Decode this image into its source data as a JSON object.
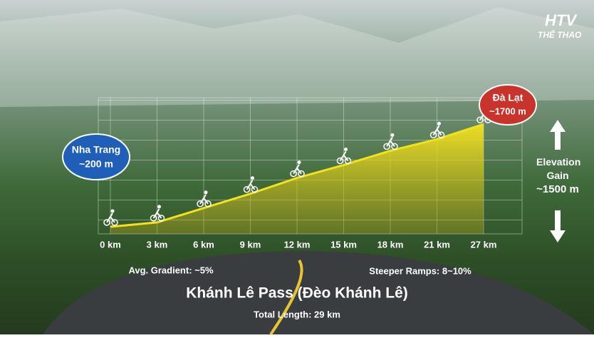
{
  "logo": {
    "brand": "HTV",
    "channel": "THỂ THAO"
  },
  "chart_data": {
    "type": "area",
    "title": "Khánh Lê Pass (Đèo Khánh Lê)",
    "subtitle": "Total Length: 29 km",
    "categories": [
      "0 km",
      "3 km",
      "6 km",
      "9 km",
      "12 km",
      "15 km",
      "18 km",
      "21 km",
      "27 km"
    ],
    "values": [
      200,
      260,
      460,
      660,
      880,
      1060,
      1260,
      1420,
      1630
    ],
    "color": "#f2e21c",
    "ylim": [
      100,
      2000
    ],
    "grid": true,
    "annotations": {
      "start_name": "Nha Trang",
      "start_elevation": "~200 m",
      "end_name": "Đà Lạt",
      "end_elevation": "~1700 m",
      "gain_label": "Elevation Gain",
      "gain_value": "~1500 m",
      "avg_gradient": "Avg. Gradient: ~5%",
      "steep_ramps": "Steeper Ramps: 8~10%"
    }
  }
}
